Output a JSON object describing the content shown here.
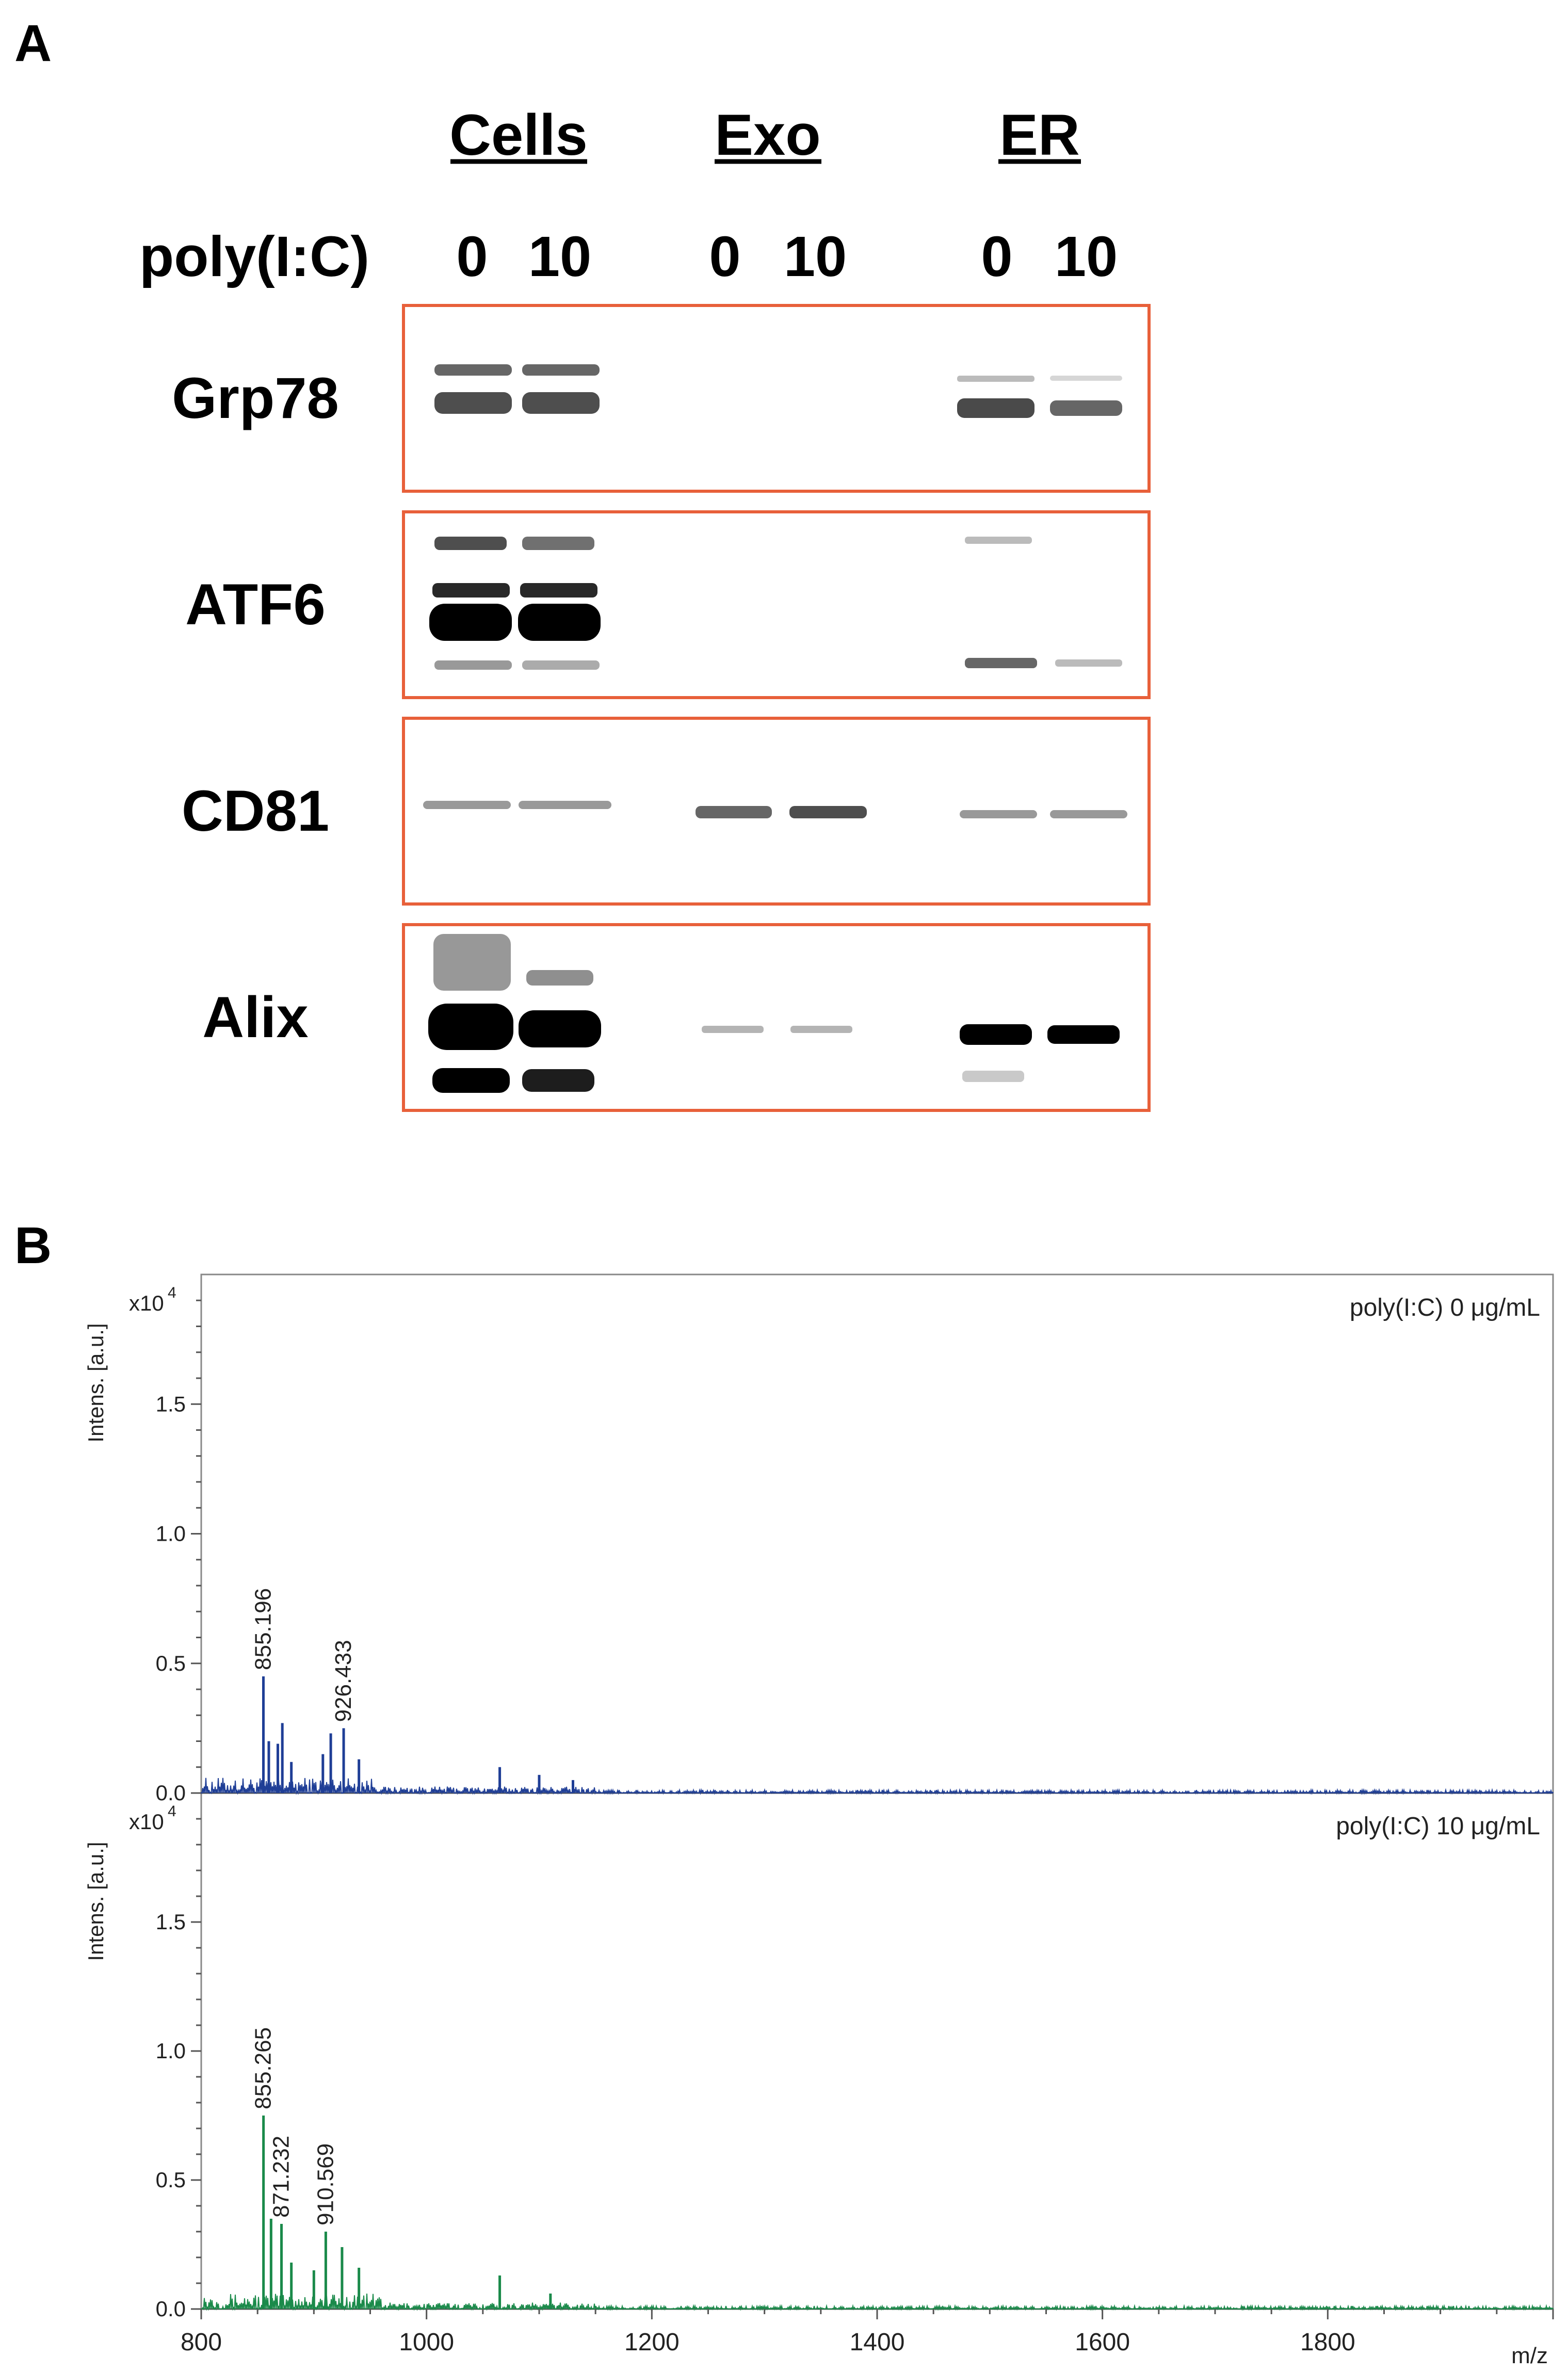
{
  "panel_a": {
    "panel_label": "A",
    "groups": [
      "Cells",
      "Exo",
      "ER"
    ],
    "treatment_label": "poly(I:C)",
    "lane_doses": [
      "0",
      "10",
      "0",
      "10",
      "0",
      "10"
    ],
    "blots": [
      {
        "protein": "Grp78"
      },
      {
        "protein": "ATF6"
      },
      {
        "protein": "CD81"
      },
      {
        "protein": "Alix"
      }
    ],
    "frame_color": "#e8603a"
  },
  "panel_b": {
    "panel_label": "B",
    "chart_data": [
      {
        "type": "line",
        "legend": "poly(I:C) 0 μg/mL",
        "ylabel": "Intens. [a.u.]",
        "y_multiplier": "x10",
        "y_multiplier_exp": "4",
        "xlim": [
          800,
          2000
        ],
        "ylim": [
          0,
          2.0
        ],
        "yticks": [
          "0.0",
          "0.5",
          "1.0",
          "1.5"
        ],
        "color": "#1f3e96",
        "peaks": [
          {
            "x": 855.196,
            "y": 0.45,
            "label": "855.196"
          },
          {
            "x": 860,
            "y": 0.2
          },
          {
            "x": 868,
            "y": 0.19
          },
          {
            "x": 872,
            "y": 0.27
          },
          {
            "x": 880,
            "y": 0.12
          },
          {
            "x": 908,
            "y": 0.15
          },
          {
            "x": 915,
            "y": 0.23
          },
          {
            "x": 926.433,
            "y": 0.25,
            "label": "926.433"
          },
          {
            "x": 940,
            "y": 0.13
          },
          {
            "x": 1065,
            "y": 0.1
          },
          {
            "x": 1100,
            "y": 0.07
          },
          {
            "x": 1130,
            "y": 0.05
          }
        ]
      },
      {
        "type": "line",
        "legend": "poly(I:C) 10 μg/mL",
        "ylabel": "Intens. [a.u.]",
        "y_multiplier": "x10",
        "y_multiplier_exp": "4",
        "xlabel": "m/z",
        "xlim": [
          800,
          2000
        ],
        "ylim": [
          0,
          2.0
        ],
        "xticks": [
          "800",
          "1000",
          "1200",
          "1400",
          "1600",
          "1800"
        ],
        "yticks": [
          "0.0",
          "0.5",
          "1.0",
          "1.5"
        ],
        "color": "#1a8a4a",
        "peaks": [
          {
            "x": 855.265,
            "y": 0.75,
            "label": "855.265"
          },
          {
            "x": 862,
            "y": 0.35
          },
          {
            "x": 871.232,
            "y": 0.33,
            "label": "871.232"
          },
          {
            "x": 880,
            "y": 0.18
          },
          {
            "x": 900,
            "y": 0.15
          },
          {
            "x": 910.569,
            "y": 0.3,
            "label": "910.569"
          },
          {
            "x": 925,
            "y": 0.24
          },
          {
            "x": 940,
            "y": 0.16
          },
          {
            "x": 1065,
            "y": 0.13
          },
          {
            "x": 1110,
            "y": 0.06
          }
        ]
      }
    ]
  }
}
